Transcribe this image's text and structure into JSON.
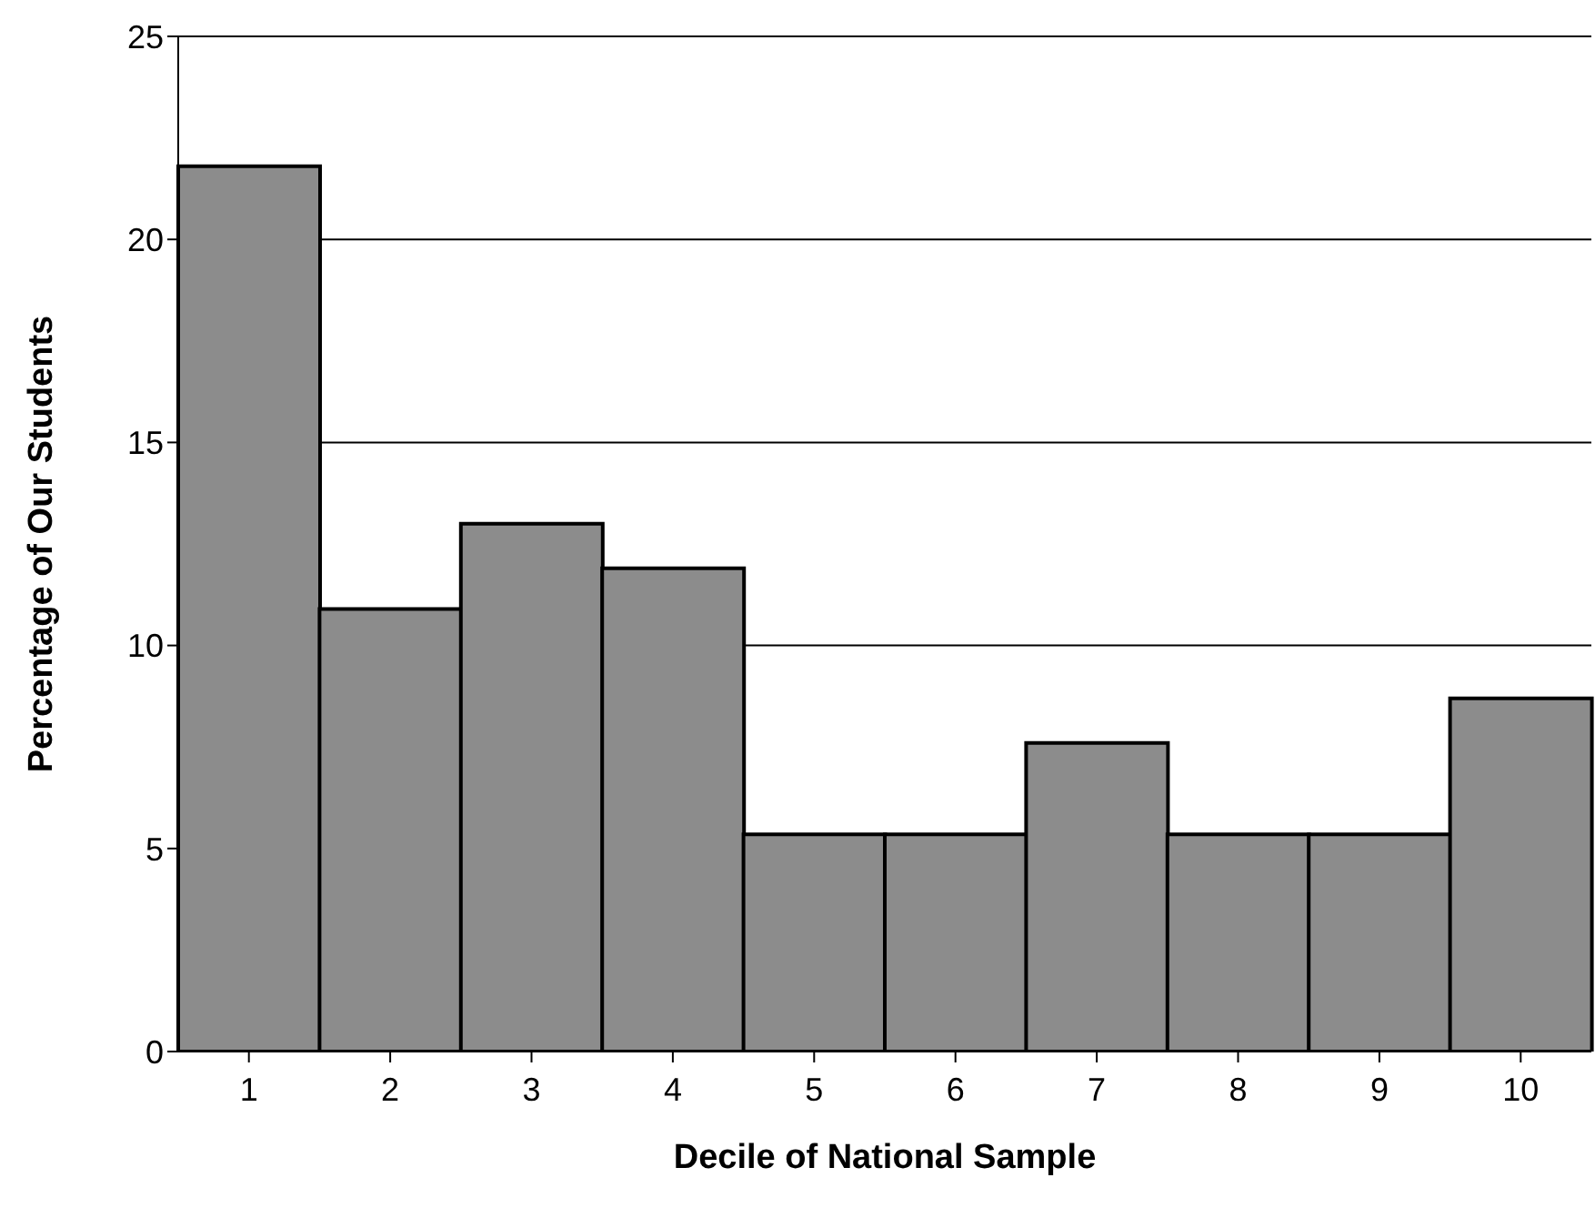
{
  "chart_data": {
    "type": "bar",
    "xlabel": "Decile of National Sample",
    "ylabel": "Percentage of Our Students",
    "categories": [
      "1",
      "2",
      "3",
      "4",
      "5",
      "6",
      "7",
      "8",
      "9",
      "10"
    ],
    "values": [
      21.8,
      10.9,
      13.0,
      11.9,
      5.35,
      5.35,
      7.6,
      5.35,
      5.35,
      8.7
    ],
    "color": "#8c8c8c",
    "ylim": [
      0,
      25
    ],
    "yticks": [
      0,
      5,
      10,
      15,
      20,
      25
    ],
    "grid": "y"
  }
}
